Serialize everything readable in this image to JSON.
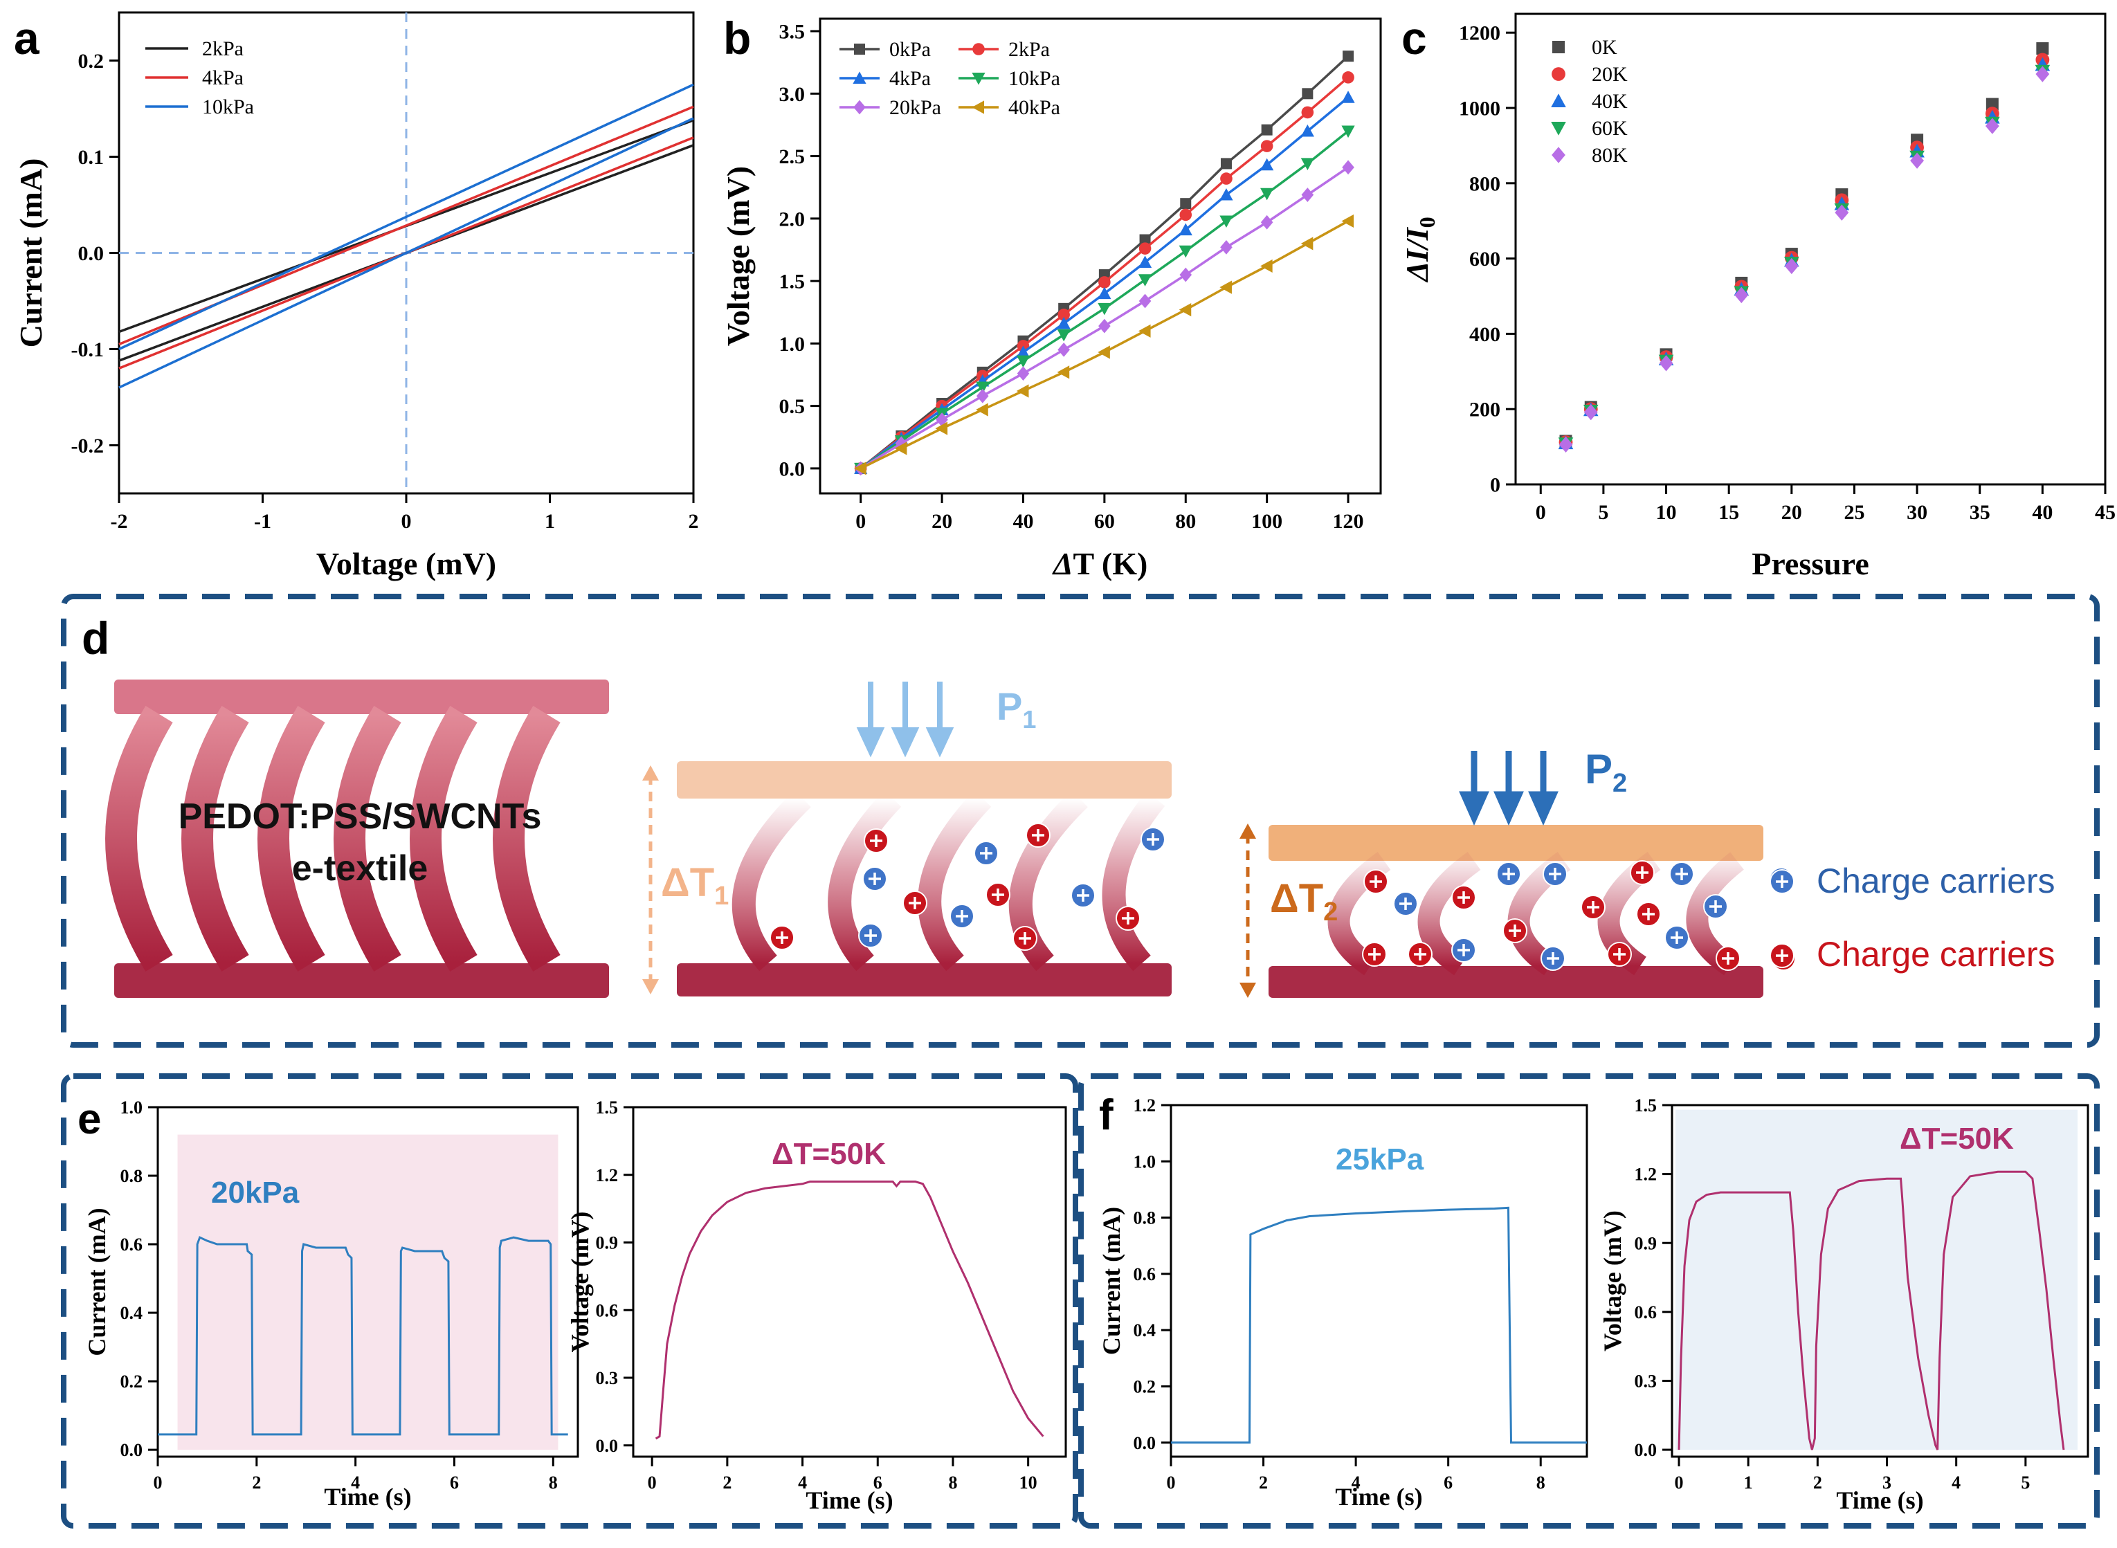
{
  "panel_labels": {
    "a": "a",
    "b": "b",
    "c": "c",
    "d": "d",
    "e": "e",
    "f": "f"
  },
  "chart_data": [
    {
      "id": "a",
      "type": "line",
      "xlabel": "Voltage (mV)",
      "ylabel": "Current (mA)",
      "xlim": [
        -2,
        2
      ],
      "ylim": [
        -0.25,
        0.25
      ],
      "xticks": [
        -2,
        -1,
        0,
        1,
        2
      ],
      "xtick_labels": [
        "-2",
        "-1",
        "0",
        "1",
        "2"
      ],
      "yticks": [
        -0.2,
        -0.1,
        0.0,
        0.1,
        0.2
      ],
      "ytick_labels": [
        "-0.2",
        "-0.1",
        "0.0",
        "0.1",
        "0.2"
      ],
      "series": [
        {
          "name": "2kPa",
          "color": "#222222",
          "lines": [
            [
              [
                -2,
                -0.082
              ],
              [
                2,
                0.138
              ]
            ],
            [
              [
                -2,
                -0.112
              ],
              [
                2,
                0.112
              ]
            ]
          ]
        },
        {
          "name": "4kPa",
          "color": "#e03131",
          "lines": [
            [
              [
                -2,
                -0.095
              ],
              [
                2,
                0.152
              ]
            ],
            [
              [
                -2,
                -0.12
              ],
              [
                2,
                0.12
              ]
            ]
          ]
        },
        {
          "name": "10kPa",
          "color": "#1c6fd1",
          "lines": [
            [
              [
                -2,
                -0.1
              ],
              [
                2,
                0.175
              ]
            ],
            [
              [
                -2,
                -0.14
              ],
              [
                2,
                0.14
              ]
            ]
          ]
        }
      ]
    },
    {
      "id": "b",
      "type": "line",
      "xlabel": "ΔT (K)",
      "ylabel": "Voltage (mV)",
      "xlim": [
        -10,
        128
      ],
      "ylim": [
        -0.2,
        3.6
      ],
      "xticks": [
        0,
        20,
        40,
        60,
        80,
        100,
        120
      ],
      "xtick_labels": [
        "0",
        "20",
        "40",
        "60",
        "80",
        "100",
        "120"
      ],
      "yticks": [
        0,
        0.5,
        1,
        1.5,
        2,
        2.5,
        3,
        3.5
      ],
      "ytick_labels": [
        "0.0",
        "0.5",
        "1.0",
        "1.5",
        "2.0",
        "2.5",
        "3.0",
        "3.5"
      ],
      "x": [
        0,
        10,
        20,
        30,
        40,
        50,
        60,
        70,
        80,
        90,
        100,
        110,
        120
      ],
      "series": [
        {
          "name": "0kPa",
          "color": "#4a4a4a",
          "marker": "square",
          "values": [
            0,
            0.26,
            0.52,
            0.77,
            1.02,
            1.28,
            1.55,
            1.83,
            2.12,
            2.44,
            2.71,
            3.0,
            3.3
          ]
        },
        {
          "name": "2kPa",
          "color": "#e83a3a",
          "marker": "circle",
          "values": [
            0,
            0.25,
            0.5,
            0.74,
            0.98,
            1.23,
            1.49,
            1.76,
            2.03,
            2.32,
            2.58,
            2.85,
            3.13
          ]
        },
        {
          "name": "4kPa",
          "color": "#1f6fe0",
          "marker": "triangle-up",
          "values": [
            0,
            0.24,
            0.47,
            0.7,
            0.93,
            1.16,
            1.4,
            1.65,
            1.91,
            2.19,
            2.43,
            2.7,
            2.97
          ]
        },
        {
          "name": "10kPa",
          "color": "#1ea85a",
          "marker": "triangle-down",
          "values": [
            0,
            0.22,
            0.44,
            0.65,
            0.86,
            1.07,
            1.28,
            1.51,
            1.74,
            1.98,
            2.2,
            2.44,
            2.7
          ]
        },
        {
          "name": "20kPa",
          "color": "#b86ee6",
          "marker": "diamond",
          "values": [
            0,
            0.2,
            0.39,
            0.58,
            0.76,
            0.95,
            1.14,
            1.34,
            1.55,
            1.77,
            1.97,
            2.19,
            2.41
          ]
        },
        {
          "name": "40kPa",
          "color": "#c89414",
          "marker": "triangle-left",
          "values": [
            0,
            0.16,
            0.32,
            0.47,
            0.62,
            0.77,
            0.93,
            1.1,
            1.27,
            1.45,
            1.62,
            1.8,
            1.98
          ]
        }
      ]
    },
    {
      "id": "c",
      "type": "scatter",
      "xlabel": "Pressure",
      "ylabel": "ΔI/I",
      "ylabel_sub": "0",
      "xlim": [
        -2,
        45
      ],
      "ylim": [
        0,
        1250
      ],
      "xticks": [
        0,
        5,
        10,
        15,
        20,
        25,
        30,
        35,
        40,
        45
      ],
      "xtick_labels": [
        "0",
        "5",
        "10",
        "15",
        "20",
        "25",
        "30",
        "35",
        "40",
        "45"
      ],
      "yticks": [
        0,
        200,
        400,
        600,
        800,
        1000,
        1200
      ],
      "ytick_labels": [
        "0",
        "200",
        "400",
        "600",
        "800",
        "1000",
        "1200"
      ],
      "x": [
        2,
        4,
        10,
        16,
        20,
        24,
        30,
        36,
        40
      ],
      "series": [
        {
          "name": "0K",
          "color": "#4a4a4a",
          "marker": "square",
          "values": [
            115,
            205,
            345,
            535,
            612,
            770,
            915,
            1010,
            1158
          ]
        },
        {
          "name": "20K",
          "color": "#e83a3a",
          "marker": "circle",
          "values": [
            112,
            200,
            338,
            525,
            602,
            755,
            895,
            985,
            1128
          ]
        },
        {
          "name": "40K",
          "color": "#1f6fe0",
          "marker": "triangle-up",
          "values": [
            110,
            198,
            333,
            518,
            595,
            745,
            885,
            975,
            1115
          ]
        },
        {
          "name": "60K",
          "color": "#1ea85a",
          "marker": "triangle-down",
          "values": [
            108,
            195,
            328,
            510,
            588,
            730,
            870,
            960,
            1098
          ]
        },
        {
          "name": "80K",
          "color": "#b86ee6",
          "marker": "diamond",
          "values": [
            106,
            192,
            322,
            503,
            580,
            722,
            860,
            952,
            1090
          ]
        }
      ]
    },
    {
      "id": "e1",
      "type": "line",
      "xlabel": "Time (s)",
      "ylabel": "Current (mA)",
      "xlim": [
        0,
        8.5
      ],
      "ylim": [
        -0.02,
        1.0
      ],
      "xticks": [
        0,
        2,
        4,
        6,
        8
      ],
      "xtick_labels": [
        "0",
        "2",
        "4",
        "6",
        "8"
      ],
      "yticks": [
        0,
        0.2,
        0.4,
        0.6,
        0.8,
        1.0
      ],
      "ytick_labels": [
        "0.0",
        "0.2",
        "0.4",
        "0.6",
        "0.8",
        "1.0"
      ],
      "annotation": "20kPa",
      "shade_x": [
        0.4,
        8.1
      ],
      "shade_y": [
        0,
        0.92
      ],
      "color": "#2f7fc0",
      "points": [
        [
          0,
          0.045
        ],
        [
          0.78,
          0.045
        ],
        [
          0.8,
          0.6
        ],
        [
          0.85,
          0.62
        ],
        [
          1.0,
          0.61
        ],
        [
          1.2,
          0.6
        ],
        [
          1.5,
          0.6
        ],
        [
          1.8,
          0.6
        ],
        [
          1.82,
          0.58
        ],
        [
          1.9,
          0.57
        ],
        [
          1.92,
          0.045
        ],
        [
          2.9,
          0.045
        ],
        [
          2.92,
          0.58
        ],
        [
          2.95,
          0.6
        ],
        [
          3.2,
          0.59
        ],
        [
          3.5,
          0.59
        ],
        [
          3.8,
          0.59
        ],
        [
          3.85,
          0.57
        ],
        [
          3.92,
          0.56
        ],
        [
          3.94,
          0.045
        ],
        [
          4.9,
          0.045
        ],
        [
          4.92,
          0.58
        ],
        [
          4.95,
          0.59
        ],
        [
          5.2,
          0.58
        ],
        [
          5.5,
          0.58
        ],
        [
          5.75,
          0.58
        ],
        [
          5.8,
          0.56
        ],
        [
          5.88,
          0.55
        ],
        [
          5.9,
          0.045
        ],
        [
          6.9,
          0.045
        ],
        [
          6.92,
          0.59
        ],
        [
          6.95,
          0.61
        ],
        [
          7.2,
          0.62
        ],
        [
          7.5,
          0.61
        ],
        [
          7.9,
          0.61
        ],
        [
          7.95,
          0.6
        ],
        [
          7.97,
          0.045
        ],
        [
          8.3,
          0.045
        ]
      ]
    },
    {
      "id": "e2",
      "type": "line",
      "xlabel": "Time (s)",
      "ylabel": "Voltage (mV)",
      "xlim": [
        -0.5,
        11
      ],
      "ylim": [
        -0.05,
        1.5
      ],
      "xticks": [
        0,
        2,
        4,
        6,
        8,
        10
      ],
      "xtick_labels": [
        "0",
        "2",
        "4",
        "6",
        "8",
        "10"
      ],
      "yticks": [
        0,
        0.3,
        0.6,
        0.9,
        1.2,
        1.5
      ],
      "ytick_labels": [
        "0.0",
        "0.3",
        "0.6",
        "0.9",
        "1.2",
        "1.5"
      ],
      "annotation": "ΔT=50K",
      "color": "#b0306e",
      "points": [
        [
          0.1,
          0.03
        ],
        [
          0.2,
          0.04
        ],
        [
          0.3,
          0.25
        ],
        [
          0.4,
          0.45
        ],
        [
          0.6,
          0.62
        ],
        [
          0.8,
          0.75
        ],
        [
          1.0,
          0.85
        ],
        [
          1.3,
          0.95
        ],
        [
          1.6,
          1.02
        ],
        [
          2.0,
          1.08
        ],
        [
          2.5,
          1.12
        ],
        [
          3.0,
          1.14
        ],
        [
          3.5,
          1.15
        ],
        [
          4.0,
          1.16
        ],
        [
          4.2,
          1.17
        ],
        [
          5.0,
          1.17
        ],
        [
          6.0,
          1.17
        ],
        [
          6.4,
          1.17
        ],
        [
          6.5,
          1.15
        ],
        [
          6.6,
          1.17
        ],
        [
          7.0,
          1.17
        ],
        [
          7.2,
          1.16
        ],
        [
          7.4,
          1.1
        ],
        [
          7.7,
          0.98
        ],
        [
          8.0,
          0.86
        ],
        [
          8.4,
          0.72
        ],
        [
          8.8,
          0.56
        ],
        [
          9.2,
          0.4
        ],
        [
          9.6,
          0.24
        ],
        [
          10.0,
          0.12
        ],
        [
          10.4,
          0.04
        ]
      ]
    },
    {
      "id": "f1",
      "type": "line",
      "xlabel": "Time (s)",
      "ylabel": "Current (mA)",
      "xlim": [
        0,
        9
      ],
      "ylim": [
        -0.05,
        1.2
      ],
      "xticks": [
        0,
        2,
        4,
        6,
        8
      ],
      "xtick_labels": [
        "0",
        "2",
        "4",
        "6",
        "8"
      ],
      "yticks": [
        0,
        0.2,
        0.4,
        0.6,
        0.8,
        1.0,
        1.2
      ],
      "ytick_labels": [
        "0.0",
        "0.2",
        "0.4",
        "0.6",
        "0.8",
        "1.0",
        "1.2"
      ],
      "annotation": "25kPa",
      "color": "#2f7fc0",
      "points": [
        [
          0,
          0.0
        ],
        [
          1.7,
          0.0
        ],
        [
          1.72,
          0.74
        ],
        [
          2.0,
          0.76
        ],
        [
          2.5,
          0.79
        ],
        [
          3.0,
          0.805
        ],
        [
          4.0,
          0.815
        ],
        [
          5.0,
          0.822
        ],
        [
          6.0,
          0.828
        ],
        [
          7.0,
          0.832
        ],
        [
          7.3,
          0.835
        ],
        [
          7.32,
          0.55
        ],
        [
          7.36,
          0.0
        ],
        [
          9,
          0.0
        ]
      ]
    },
    {
      "id": "f2",
      "type": "line",
      "xlabel": "Time (s)",
      "ylabel": "Voltage (mV)",
      "xlim": [
        -0.1,
        5.9
      ],
      "ylim": [
        -0.03,
        1.5
      ],
      "xticks": [
        0,
        1,
        2,
        3,
        4,
        5
      ],
      "xtick_labels": [
        "0",
        "1",
        "2",
        "3",
        "4",
        "5"
      ],
      "yticks": [
        0,
        0.3,
        0.6,
        0.9,
        1.2,
        1.5
      ],
      "ytick_labels": [
        "0.0",
        "0.3",
        "0.6",
        "0.9",
        "1.2",
        "1.5"
      ],
      "annotation": "ΔT=50K",
      "shade_x": [
        -0.05,
        5.75
      ],
      "shade_y": [
        0,
        1.48
      ],
      "color": "#b0306e",
      "points": [
        [
          0.0,
          0.0
        ],
        [
          0.03,
          0.4
        ],
        [
          0.08,
          0.8
        ],
        [
          0.15,
          1.0
        ],
        [
          0.25,
          1.08
        ],
        [
          0.4,
          1.11
        ],
        [
          0.6,
          1.12
        ],
        [
          1.0,
          1.12
        ],
        [
          1.4,
          1.12
        ],
        [
          1.6,
          1.12
        ],
        [
          1.65,
          0.95
        ],
        [
          1.72,
          0.6
        ],
        [
          1.8,
          0.3
        ],
        [
          1.88,
          0.05
        ],
        [
          1.92,
          0.0
        ],
        [
          1.96,
          0.05
        ],
        [
          1.98,
          0.45
        ],
        [
          2.05,
          0.85
        ],
        [
          2.15,
          1.05
        ],
        [
          2.3,
          1.13
        ],
        [
          2.6,
          1.17
        ],
        [
          3.0,
          1.18
        ],
        [
          3.2,
          1.18
        ],
        [
          3.22,
          1.1
        ],
        [
          3.3,
          0.75
        ],
        [
          3.45,
          0.4
        ],
        [
          3.6,
          0.15
        ],
        [
          3.7,
          0.02
        ],
        [
          3.73,
          0.0
        ],
        [
          3.76,
          0.4
        ],
        [
          3.82,
          0.85
        ],
        [
          3.95,
          1.1
        ],
        [
          4.2,
          1.19
        ],
        [
          4.6,
          1.21
        ],
        [
          5.0,
          1.21
        ],
        [
          5.1,
          1.18
        ],
        [
          5.2,
          0.95
        ],
        [
          5.3,
          0.7
        ],
        [
          5.4,
          0.4
        ],
        [
          5.5,
          0.12
        ],
        [
          5.55,
          0.0
        ]
      ]
    }
  ],
  "diagram": {
    "textile_label_line1": "PEDOT:PSS/SWCNTs",
    "textile_label_line2": "e-textile",
    "p1": "P",
    "p1_sub": "1",
    "p2": "P",
    "p2_sub": "2",
    "dt1": "ΔT",
    "dt1_sub": "1",
    "dt2": "ΔT",
    "dt2_sub": "2",
    "legend_pos": "Charge carriers",
    "legend_neg": "Charge carriers",
    "colors": {
      "textile": "#c0455d",
      "pale_plate": "#f4c6a6",
      "orange_plate": "#f0b07a",
      "pos_carrier": "#3f74c8",
      "neg_carrier": "#c8141c",
      "frame": "#1d4f82",
      "p1_arrow": "#8fc0ea",
      "p2_arrow": "#2c6fb8",
      "dt1": "#f3b48a",
      "dt2": "#cc6a1c"
    }
  }
}
